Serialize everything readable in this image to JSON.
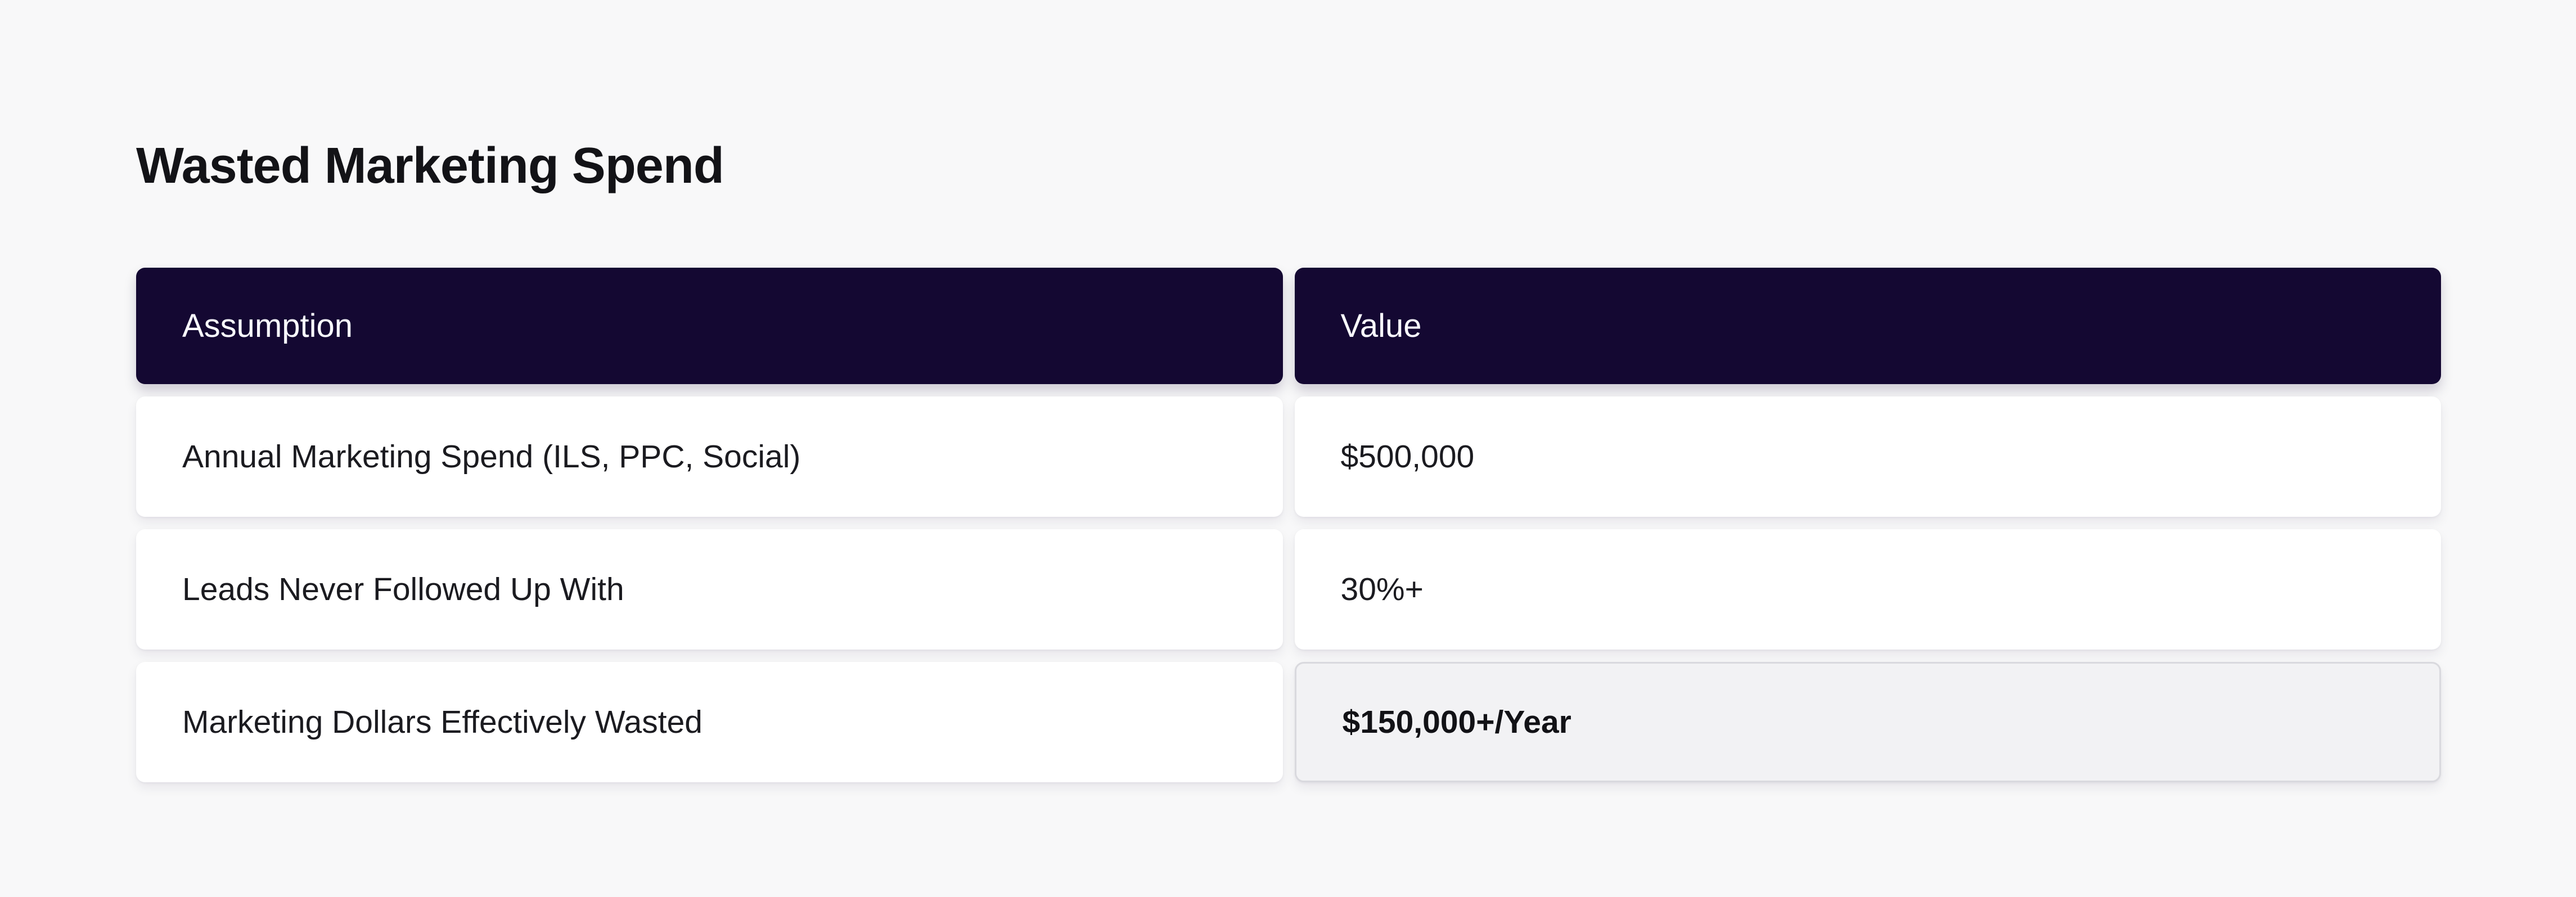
{
  "page": {
    "title": "Wasted Marketing Spend"
  },
  "table": {
    "headers": [
      {
        "label": "Assumption"
      },
      {
        "label": "Value"
      }
    ],
    "rows": [
      {
        "assumption": "Annual Marketing Spend (ILS, PPC, Social)",
        "value": "$500,000",
        "highlight_value": false
      },
      {
        "assumption": "Leads Never Followed Up With",
        "value": "30%+",
        "highlight_value": false
      },
      {
        "assumption": "Marketing Dollars Effectively Wasted",
        "value": "$150,000+/Year",
        "highlight_value": true
      }
    ]
  },
  "colors": {
    "page_bg": "#f8f8f9",
    "header_bg": "#140832",
    "header_text": "#fafaff",
    "cell_bg": "#ffffff",
    "cell_text": "#1b1b20",
    "title": "#131317",
    "highlight_bg": "#f2f2f4",
    "highlight_border": "#d9d9de",
    "highlight_text": "#121216"
  }
}
